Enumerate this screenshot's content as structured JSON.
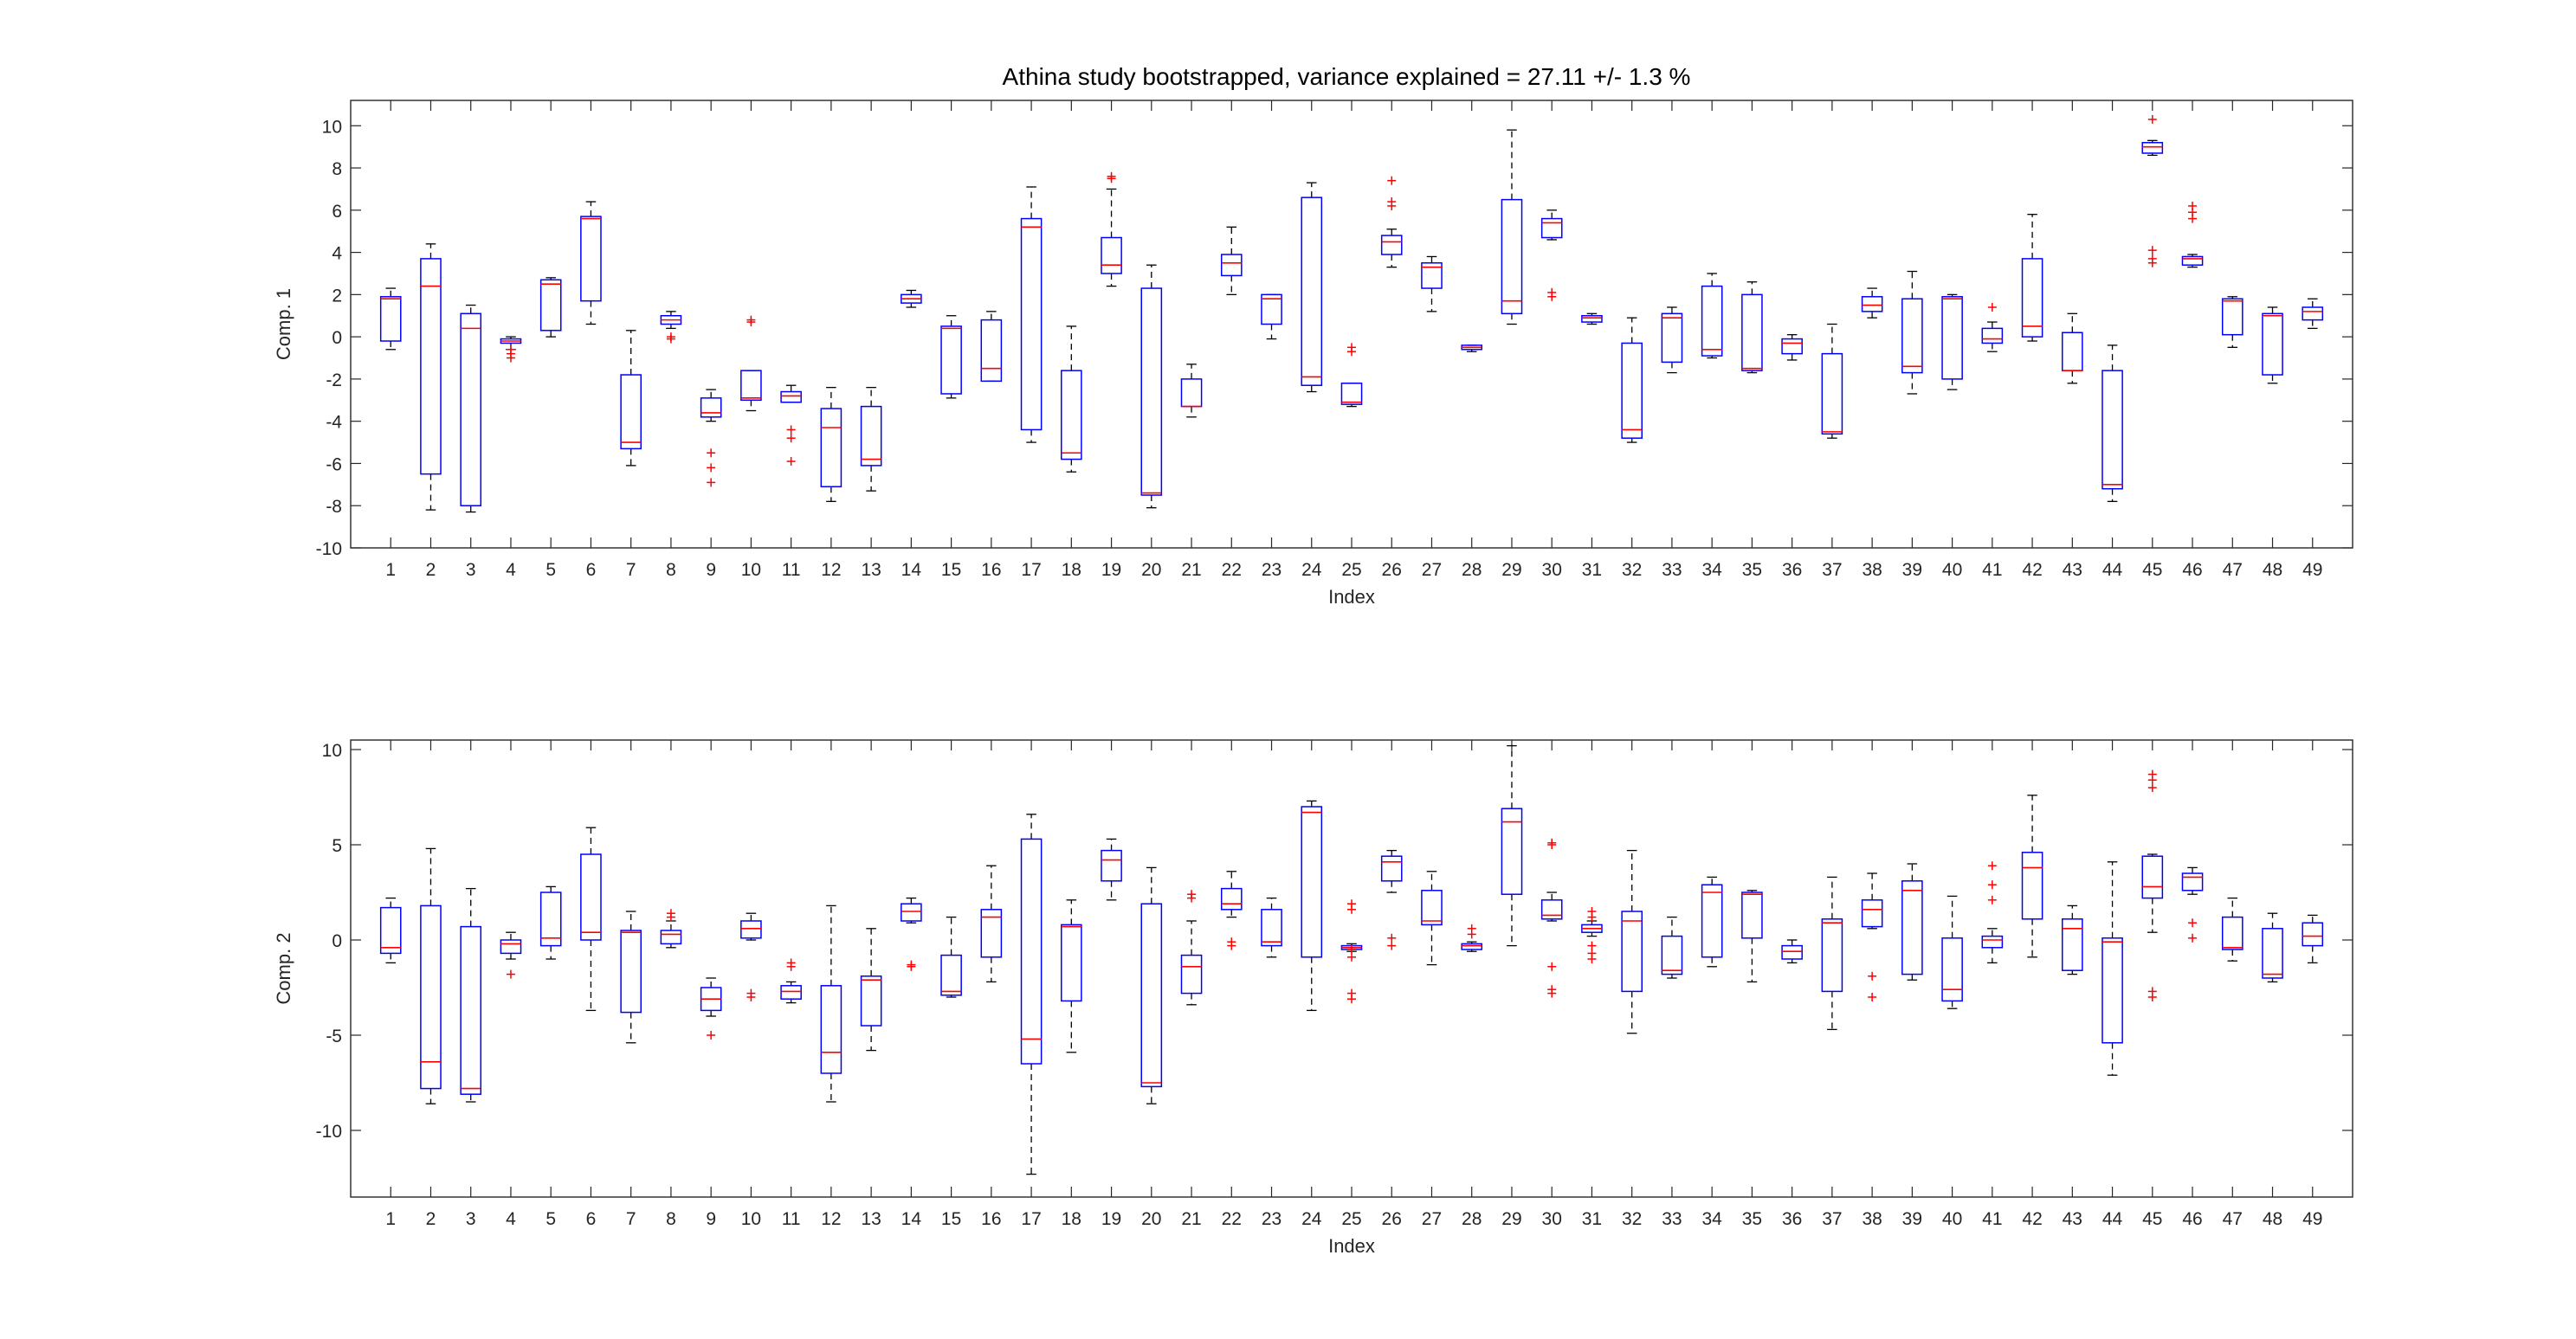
{
  "title": "Athina study bootstrapped, variance explained = 27.11 +/- 1.3 %",
  "colors": {
    "box": "#0000ff",
    "median": "#ff0000",
    "whisker": "#000000",
    "outlier": "#ff0000",
    "axis": "#262626"
  },
  "chart_data": [
    {
      "type": "boxplot",
      "xlabel": "Index",
      "ylabel": "Comp. 1",
      "ylim": [
        -10,
        11.2
      ],
      "yticks": [
        -10,
        -8,
        -6,
        -4,
        -2,
        0,
        2,
        4,
        6,
        8,
        10
      ],
      "categories": [
        "1",
        "2",
        "3",
        "4",
        "5",
        "6",
        "7",
        "8",
        "9",
        "10",
        "11",
        "12",
        "13",
        "14",
        "15",
        "16",
        "17",
        "18",
        "19",
        "20",
        "21",
        "22",
        "23",
        "24",
        "25",
        "26",
        "27",
        "28",
        "29",
        "30",
        "31",
        "32",
        "33",
        "34",
        "35",
        "36",
        "37",
        "38",
        "39",
        "40",
        "41",
        "42",
        "43",
        "44",
        "45",
        "46",
        "47",
        "48",
        "49"
      ],
      "boxes": [
        {
          "lw": -0.6,
          "q1": -0.2,
          "med": 1.8,
          "q3": 1.9,
          "uw": 2.3,
          "out": []
        },
        {
          "lw": -8.2,
          "q1": -6.5,
          "med": 2.4,
          "q3": 3.7,
          "uw": 4.4,
          "out": []
        },
        {
          "lw": -8.3,
          "q1": -8.0,
          "med": 0.4,
          "q3": 1.1,
          "uw": 1.5,
          "out": []
        },
        {
          "lw": -0.6,
          "q1": -0.3,
          "med": -0.2,
          "q3": -0.1,
          "uw": 0.0,
          "out": [
            -0.6,
            -0.8,
            -1.0
          ]
        },
        {
          "lw": 0.0,
          "q1": 0.3,
          "med": 2.5,
          "q3": 2.7,
          "uw": 2.8,
          "out": []
        },
        {
          "lw": 0.6,
          "q1": 1.7,
          "med": 5.6,
          "q3": 5.7,
          "uw": 6.4,
          "out": []
        },
        {
          "lw": -6.1,
          "q1": -5.3,
          "med": -5.0,
          "q3": -1.8,
          "uw": 0.3,
          "out": []
        },
        {
          "lw": 0.4,
          "q1": 0.6,
          "med": 0.8,
          "q3": 1.0,
          "uw": 1.2,
          "out": [
            0.0,
            -0.1
          ]
        },
        {
          "lw": -4.0,
          "q1": -3.8,
          "med": -3.6,
          "q3": -2.9,
          "uw": -2.5,
          "out": [
            -5.5,
            -6.2,
            -6.9
          ]
        },
        {
          "lw": -3.5,
          "q1": -3.0,
          "med": -2.9,
          "q3": -1.6,
          "uw": -1.6,
          "out": [
            0.7,
            0.8
          ]
        },
        {
          "lw": -3.1,
          "q1": -3.1,
          "med": -2.8,
          "q3": -2.6,
          "uw": -2.3,
          "out": [
            -4.4,
            -4.8,
            -5.9
          ]
        },
        {
          "lw": -7.8,
          "q1": -7.1,
          "med": -4.3,
          "q3": -3.4,
          "uw": -2.4,
          "out": []
        },
        {
          "lw": -7.3,
          "q1": -6.1,
          "med": -5.8,
          "q3": -3.3,
          "uw": -2.4,
          "out": []
        },
        {
          "lw": 1.4,
          "q1": 1.6,
          "med": 1.8,
          "q3": 2.0,
          "uw": 2.2,
          "out": []
        },
        {
          "lw": -2.9,
          "q1": -2.7,
          "med": 0.4,
          "q3": 0.5,
          "uw": 1.0,
          "out": []
        },
        {
          "lw": -2.1,
          "q1": -2.1,
          "med": -1.5,
          "q3": 0.8,
          "uw": 1.2,
          "out": []
        },
        {
          "lw": -5.0,
          "q1": -4.4,
          "med": 5.2,
          "q3": 5.6,
          "uw": 7.1,
          "out": []
        },
        {
          "lw": -6.4,
          "q1": -5.8,
          "med": -5.5,
          "q3": -1.6,
          "uw": 0.5,
          "out": []
        },
        {
          "lw": 2.4,
          "q1": 3.0,
          "med": 3.4,
          "q3": 4.7,
          "uw": 7.0,
          "out": [
            7.5,
            7.6
          ]
        },
        {
          "lw": -8.1,
          "q1": -7.5,
          "med": -7.4,
          "q3": 2.3,
          "uw": 3.4,
          "out": []
        },
        {
          "lw": -3.8,
          "q1": -3.3,
          "med": -3.3,
          "q3": -2.0,
          "uw": -1.3,
          "out": []
        },
        {
          "lw": 2.0,
          "q1": 2.9,
          "med": 3.5,
          "q3": 3.9,
          "uw": 5.2,
          "out": []
        },
        {
          "lw": -0.1,
          "q1": 0.6,
          "med": 1.8,
          "q3": 2.0,
          "uw": 2.0,
          "out": []
        },
        {
          "lw": -2.6,
          "q1": -2.3,
          "med": -1.9,
          "q3": 6.6,
          "uw": 7.3,
          "out": []
        },
        {
          "lw": -3.3,
          "q1": -3.2,
          "med": -3.1,
          "q3": -2.2,
          "uw": -2.2,
          "out": [
            -0.5,
            -0.7
          ]
        },
        {
          "lw": 3.3,
          "q1": 3.9,
          "med": 4.5,
          "q3": 4.8,
          "uw": 5.1,
          "out": [
            6.2,
            6.4,
            7.4
          ]
        },
        {
          "lw": 1.2,
          "q1": 2.3,
          "med": 3.3,
          "q3": 3.5,
          "uw": 3.8,
          "out": []
        },
        {
          "lw": -0.7,
          "q1": -0.6,
          "med": -0.5,
          "q3": -0.4,
          "uw": -0.4,
          "out": []
        },
        {
          "lw": 0.6,
          "q1": 1.1,
          "med": 1.7,
          "q3": 6.5,
          "uw": 9.8,
          "out": []
        },
        {
          "lw": 4.6,
          "q1": 4.7,
          "med": 5.4,
          "q3": 5.6,
          "uw": 6.0,
          "out": [
            1.9,
            2.1
          ]
        },
        {
          "lw": 0.6,
          "q1": 0.7,
          "med": 0.9,
          "q3": 1.0,
          "uw": 1.1,
          "out": []
        },
        {
          "lw": -5.0,
          "q1": -4.8,
          "med": -4.4,
          "q3": -0.3,
          "uw": 0.9,
          "out": []
        },
        {
          "lw": -1.7,
          "q1": -1.2,
          "med": 0.9,
          "q3": 1.1,
          "uw": 1.4,
          "out": []
        },
        {
          "lw": -1.0,
          "q1": -0.9,
          "med": -0.6,
          "q3": 2.4,
          "uw": 3.0,
          "out": []
        },
        {
          "lw": -1.7,
          "q1": -1.6,
          "med": -1.5,
          "q3": 2.0,
          "uw": 2.6,
          "out": []
        },
        {
          "lw": -1.1,
          "q1": -0.8,
          "med": -0.3,
          "q3": -0.1,
          "uw": 0.1,
          "out": []
        },
        {
          "lw": -4.8,
          "q1": -4.6,
          "med": -4.5,
          "q3": -0.8,
          "uw": 0.6,
          "out": []
        },
        {
          "lw": 0.9,
          "q1": 1.2,
          "med": 1.5,
          "q3": 1.9,
          "uw": 2.3,
          "out": []
        },
        {
          "lw": -2.7,
          "q1": -1.7,
          "med": -1.4,
          "q3": 1.8,
          "uw": 3.1,
          "out": []
        },
        {
          "lw": -2.5,
          "q1": -2.0,
          "med": 1.8,
          "q3": 1.9,
          "uw": 2.0,
          "out": []
        },
        {
          "lw": -0.7,
          "q1": -0.3,
          "med": -0.1,
          "q3": 0.4,
          "uw": 0.7,
          "out": [
            1.4
          ]
        },
        {
          "lw": -0.2,
          "q1": 0.0,
          "med": 0.5,
          "q3": 3.7,
          "uw": 5.8,
          "out": []
        },
        {
          "lw": -2.2,
          "q1": -1.6,
          "med": -1.6,
          "q3": 0.2,
          "uw": 1.1,
          "out": []
        },
        {
          "lw": -7.8,
          "q1": -7.2,
          "med": -7.0,
          "q3": -1.6,
          "uw": -0.4,
          "out": []
        },
        {
          "lw": 8.6,
          "q1": 8.7,
          "med": 9.0,
          "q3": 9.2,
          "uw": 9.3,
          "out": [
            10.3,
            3.5,
            3.7,
            4.1
          ]
        },
        {
          "lw": 3.3,
          "q1": 3.4,
          "med": 3.7,
          "q3": 3.8,
          "uw": 3.9,
          "out": [
            5.6,
            5.9,
            6.2
          ]
        },
        {
          "lw": -0.5,
          "q1": 0.1,
          "med": 1.7,
          "q3": 1.8,
          "uw": 1.9,
          "out": []
        },
        {
          "lw": -2.2,
          "q1": -1.8,
          "med": 1.0,
          "q3": 1.1,
          "uw": 1.4,
          "out": []
        },
        {
          "lw": 0.4,
          "q1": 0.8,
          "med": 1.2,
          "q3": 1.4,
          "uw": 1.8,
          "out": []
        }
      ]
    },
    {
      "type": "boxplot",
      "xlabel": "Index",
      "ylabel": "Comp. 2",
      "ylim": [
        -13.5,
        10.5
      ],
      "yticks": [
        -10,
        -5,
        0,
        5,
        10
      ],
      "categories": [
        "1",
        "2",
        "3",
        "4",
        "5",
        "6",
        "7",
        "8",
        "9",
        "10",
        "11",
        "12",
        "13",
        "14",
        "15",
        "16",
        "17",
        "18",
        "19",
        "20",
        "21",
        "22",
        "23",
        "24",
        "25",
        "26",
        "27",
        "28",
        "29",
        "30",
        "31",
        "32",
        "33",
        "34",
        "35",
        "36",
        "37",
        "38",
        "39",
        "40",
        "41",
        "42",
        "43",
        "44",
        "45",
        "46",
        "47",
        "48",
        "49"
      ],
      "boxes": [
        {
          "lw": -1.2,
          "q1": -0.7,
          "med": -0.4,
          "q3": 1.7,
          "uw": 2.2,
          "out": []
        },
        {
          "lw": -8.6,
          "q1": -7.8,
          "med": -6.4,
          "q3": 1.8,
          "uw": 4.8,
          "out": []
        },
        {
          "lw": -8.5,
          "q1": -8.1,
          "med": -7.8,
          "q3": 0.7,
          "uw": 2.7,
          "out": []
        },
        {
          "lw": -1.0,
          "q1": -0.7,
          "med": -0.2,
          "q3": 0.0,
          "uw": 0.4,
          "out": [
            -1.8
          ]
        },
        {
          "lw": -1.0,
          "q1": -0.3,
          "med": 0.1,
          "q3": 2.5,
          "uw": 2.8,
          "out": []
        },
        {
          "lw": -3.7,
          "q1": 0.0,
          "med": 0.4,
          "q3": 4.5,
          "uw": 5.9,
          "out": []
        },
        {
          "lw": -5.4,
          "q1": -3.8,
          "med": 0.4,
          "q3": 0.5,
          "uw": 1.5,
          "out": []
        },
        {
          "lw": -0.4,
          "q1": -0.2,
          "med": 0.3,
          "q3": 0.5,
          "uw": 1.0,
          "out": [
            1.2,
            1.4
          ]
        },
        {
          "lw": -4.0,
          "q1": -3.7,
          "med": -3.1,
          "q3": -2.5,
          "uw": -2.0,
          "out": [
            -5.0
          ]
        },
        {
          "lw": 0.0,
          "q1": 0.1,
          "med": 0.6,
          "q3": 1.0,
          "uw": 1.4,
          "out": [
            -2.8,
            -3.0
          ]
        },
        {
          "lw": -3.3,
          "q1": -3.1,
          "med": -2.7,
          "q3": -2.4,
          "uw": -2.2,
          "out": [
            -1.2,
            -1.4
          ]
        },
        {
          "lw": -8.5,
          "q1": -7.0,
          "med": -5.9,
          "q3": -2.4,
          "uw": 1.8,
          "out": []
        },
        {
          "lw": -5.8,
          "q1": -4.5,
          "med": -2.1,
          "q3": -1.9,
          "uw": 0.6,
          "out": []
        },
        {
          "lw": 0.9,
          "q1": 1.0,
          "med": 1.5,
          "q3": 1.9,
          "uw": 2.2,
          "out": [
            -1.3,
            -1.4
          ]
        },
        {
          "lw": -3.0,
          "q1": -2.9,
          "med": -2.7,
          "q3": -0.8,
          "uw": 1.2,
          "out": []
        },
        {
          "lw": -2.2,
          "q1": -0.9,
          "med": 1.2,
          "q3": 1.6,
          "uw": 3.9,
          "out": []
        },
        {
          "lw": -12.3,
          "q1": -6.5,
          "med": -5.2,
          "q3": 5.3,
          "uw": 6.6,
          "out": []
        },
        {
          "lw": -5.9,
          "q1": -3.2,
          "med": 0.7,
          "q3": 0.8,
          "uw": 2.1,
          "out": []
        },
        {
          "lw": 2.1,
          "q1": 3.1,
          "med": 4.2,
          "q3": 4.7,
          "uw": 5.3,
          "out": []
        },
        {
          "lw": -8.6,
          "q1": -7.7,
          "med": -7.5,
          "q3": 1.9,
          "uw": 3.8,
          "out": []
        },
        {
          "lw": -3.4,
          "q1": -2.8,
          "med": -1.4,
          "q3": -0.8,
          "uw": 1.0,
          "out": [
            2.2,
            2.4
          ]
        },
        {
          "lw": 1.2,
          "q1": 1.6,
          "med": 1.9,
          "q3": 2.7,
          "uw": 3.6,
          "out": [
            -0.1,
            -0.3
          ]
        },
        {
          "lw": -0.9,
          "q1": -0.3,
          "med": -0.1,
          "q3": 1.6,
          "uw": 2.2,
          "out": []
        },
        {
          "lw": -3.7,
          "q1": -0.9,
          "med": 6.7,
          "q3": 7.0,
          "uw": 7.3,
          "out": []
        },
        {
          "lw": -0.6,
          "q1": -0.5,
          "med": -0.4,
          "q3": -0.3,
          "uw": -0.2,
          "out": [
            1.9,
            1.6,
            -0.5,
            -0.9,
            -2.8,
            -3.1
          ]
        },
        {
          "lw": 2.5,
          "q1": 3.1,
          "med": 4.1,
          "q3": 4.4,
          "uw": 4.7,
          "out": [
            0.1,
            -0.3
          ]
        },
        {
          "lw": -1.3,
          "q1": 0.8,
          "med": 1.0,
          "q3": 2.6,
          "uw": 3.6,
          "out": []
        },
        {
          "lw": -0.6,
          "q1": -0.5,
          "med": -0.3,
          "q3": -0.2,
          "uw": -0.1,
          "out": [
            0.6,
            0.3
          ]
        },
        {
          "lw": -0.3,
          "q1": 2.4,
          "med": 6.2,
          "q3": 6.9,
          "uw": 10.2,
          "out": []
        },
        {
          "lw": 1.0,
          "q1": 1.1,
          "med": 1.3,
          "q3": 2.1,
          "uw": 2.5,
          "out": [
            5.1,
            5.0,
            -1.4,
            -2.6,
            -2.8
          ]
        },
        {
          "lw": 0.2,
          "q1": 0.4,
          "med": 0.6,
          "q3": 0.8,
          "uw": 1.0,
          "out": [
            1.5,
            1.2,
            -0.3,
            -0.7,
            -1.0
          ]
        },
        {
          "lw": -4.9,
          "q1": -2.7,
          "med": 1.0,
          "q3": 1.5,
          "uw": 4.7,
          "out": []
        },
        {
          "lw": -2.0,
          "q1": -1.8,
          "med": -1.6,
          "q3": 0.2,
          "uw": 1.2,
          "out": []
        },
        {
          "lw": -1.4,
          "q1": -0.9,
          "med": 2.5,
          "q3": 2.9,
          "uw": 3.3,
          "out": []
        },
        {
          "lw": -2.2,
          "q1": 0.1,
          "med": 2.4,
          "q3": 2.5,
          "uw": 2.6,
          "out": []
        },
        {
          "lw": -1.2,
          "q1": -1.0,
          "med": -0.6,
          "q3": -0.3,
          "uw": 0.0,
          "out": []
        },
        {
          "lw": -4.7,
          "q1": -2.7,
          "med": 0.9,
          "q3": 1.1,
          "uw": 3.3,
          "out": []
        },
        {
          "lw": 0.6,
          "q1": 0.7,
          "med": 1.6,
          "q3": 2.1,
          "uw": 3.5,
          "out": [
            -1.9,
            -3.0
          ]
        },
        {
          "lw": -2.1,
          "q1": -1.8,
          "med": 2.6,
          "q3": 3.1,
          "uw": 4.0,
          "out": []
        },
        {
          "lw": -3.6,
          "q1": -3.2,
          "med": -2.6,
          "q3": 0.1,
          "uw": 2.3,
          "out": []
        },
        {
          "lw": -1.2,
          "q1": -0.4,
          "med": 0.0,
          "q3": 0.2,
          "uw": 0.6,
          "out": [
            3.9,
            2.9,
            2.1
          ]
        },
        {
          "lw": -0.9,
          "q1": 1.1,
          "med": 3.8,
          "q3": 4.6,
          "uw": 7.6,
          "out": []
        },
        {
          "lw": -1.8,
          "q1": -1.6,
          "med": 0.6,
          "q3": 1.1,
          "uw": 1.8,
          "out": []
        },
        {
          "lw": -7.1,
          "q1": -5.4,
          "med": -0.1,
          "q3": 0.1,
          "uw": 4.1,
          "out": []
        },
        {
          "lw": 0.4,
          "q1": 2.2,
          "med": 2.8,
          "q3": 4.4,
          "uw": 4.5,
          "out": [
            8.7,
            8.4,
            8.0,
            -2.7,
            -3.0
          ]
        },
        {
          "lw": 2.4,
          "q1": 2.6,
          "med": 3.3,
          "q3": 3.5,
          "uw": 3.8,
          "out": [
            0.9,
            0.1
          ]
        },
        {
          "lw": -1.1,
          "q1": -0.5,
          "med": -0.4,
          "q3": 1.2,
          "uw": 2.2,
          "out": []
        },
        {
          "lw": -2.2,
          "q1": -2.0,
          "med": -1.8,
          "q3": 0.6,
          "uw": 1.4,
          "out": []
        },
        {
          "lw": -1.2,
          "q1": -0.3,
          "med": 0.2,
          "q3": 0.9,
          "uw": 1.3,
          "out": []
        }
      ]
    }
  ]
}
